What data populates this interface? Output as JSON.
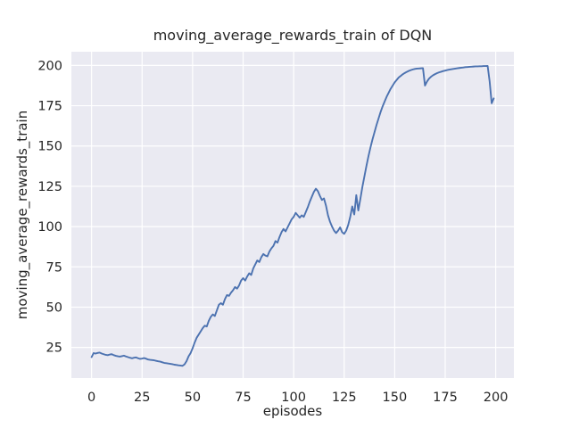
{
  "chart_data": {
    "type": "line",
    "title": "moving_average_rewards_train of DQN",
    "xlabel": "episodes",
    "ylabel": "moving_average_rewards_train",
    "x_ticks": [
      0,
      25,
      50,
      75,
      100,
      125,
      150,
      175,
      200
    ],
    "y_ticks": [
      25,
      50,
      75,
      100,
      125,
      150,
      175,
      200
    ],
    "xlim": [
      -10,
      209
    ],
    "ylim": [
      6,
      208.5
    ],
    "grid": true,
    "legend": "none",
    "style": "seaborn-darkgrid",
    "series": [
      {
        "name": "moving_average_rewards_train",
        "x_start": 0,
        "x_step": 1,
        "values": [
          19.0,
          21.5,
          21.2,
          21.6,
          21.8,
          21.2,
          20.8,
          20.4,
          20.2,
          20.6,
          20.8,
          20.2,
          19.8,
          19.5,
          19.3,
          19.6,
          19.9,
          19.4,
          19.0,
          18.6,
          18.3,
          18.6,
          18.8,
          18.3,
          17.9,
          18.1,
          18.4,
          18.0,
          17.5,
          17.3,
          17.2,
          17.0,
          16.7,
          16.4,
          16.2,
          15.8,
          15.4,
          15.2,
          15.0,
          14.8,
          14.6,
          14.3,
          14.1,
          13.9,
          13.8,
          13.6,
          14.5,
          16.5,
          19.5,
          21.5,
          24.5,
          28.0,
          31.0,
          33.0,
          35.0,
          37.0,
          38.5,
          38.0,
          41.5,
          44.0,
          45.5,
          44.5,
          48.0,
          51.5,
          52.5,
          51.5,
          55.0,
          57.5,
          57.0,
          59.0,
          60.5,
          62.5,
          61.5,
          63.5,
          66.5,
          68.0,
          66.5,
          69.0,
          71.0,
          70.0,
          74.0,
          76.5,
          79.0,
          78.0,
          81.0,
          83.0,
          82.0,
          81.5,
          84.5,
          86.5,
          88.0,
          91.0,
          90.0,
          93.5,
          96.5,
          98.5,
          97.0,
          99.5,
          102.0,
          104.5,
          106.0,
          108.5,
          107.0,
          105.5,
          107.0,
          106.0,
          109.0,
          112.0,
          115.5,
          118.5,
          121.5,
          123.5,
          122.0,
          119.0,
          116.5,
          117.5,
          113.0,
          107.0,
          103.0,
          100.0,
          97.5,
          96.0,
          97.5,
          99.5,
          96.5,
          95.5,
          97.5,
          101.0,
          106.0,
          112.5,
          107.5,
          119.5,
          110.0,
          117.0,
          124.5,
          131.0,
          137.5,
          143.5,
          149.0,
          154.0,
          158.5,
          163.0,
          167.0,
          171.0,
          174.5,
          177.5,
          180.5,
          183.0,
          185.5,
          187.5,
          189.5,
          191.0,
          192.5,
          193.5,
          194.5,
          195.3,
          196.0,
          196.6,
          197.1,
          197.5,
          197.8,
          198.0,
          198.1,
          198.2,
          198.3,
          187.5,
          190.0,
          191.8,
          193.0,
          193.9,
          194.6,
          195.2,
          195.7,
          196.1,
          196.5,
          196.8,
          197.1,
          197.4,
          197.6,
          197.8,
          198.0,
          198.2,
          198.4,
          198.6,
          198.7,
          198.9,
          199.0,
          199.1,
          199.2,
          199.3,
          199.4,
          199.4,
          199.5,
          199.5,
          199.6,
          199.6,
          199.7,
          190.0,
          176.5,
          179.5
        ]
      }
    ]
  },
  "colors": {
    "figure_background": "#ffffff",
    "axes_background": "#eaeaf2",
    "grid": "#ffffff",
    "line": "#4c72b0",
    "text": "#262626"
  }
}
